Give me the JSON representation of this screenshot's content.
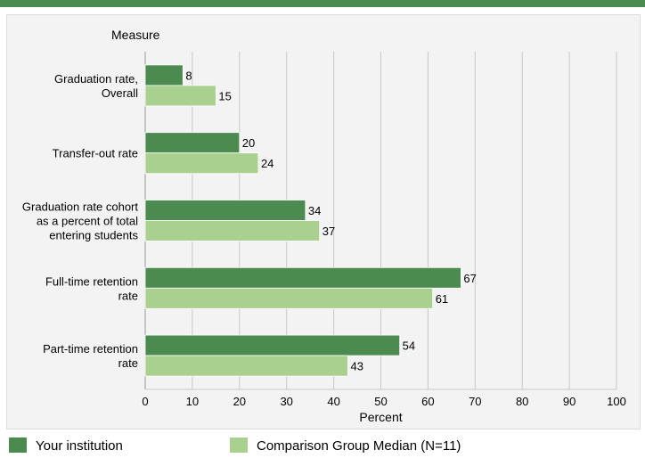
{
  "chart_data": {
    "type": "bar",
    "orientation": "horizontal",
    "yaxis_title": "Measure",
    "xlabel": "Percent",
    "xlim": [
      0,
      100
    ],
    "xticks": [
      0,
      10,
      20,
      30,
      40,
      50,
      60,
      70,
      80,
      90,
      100
    ],
    "grid": true,
    "categories": [
      [
        "Graduation rate,",
        "Overall"
      ],
      [
        "Transfer-out rate"
      ],
      [
        "Graduation rate cohort",
        "as a percent of total",
        "entering students"
      ],
      [
        "Full-time retention",
        "rate"
      ],
      [
        "Part-time retention",
        "rate"
      ]
    ],
    "series": [
      {
        "name": "Your institution",
        "color": "#4b8b4f",
        "values": [
          8,
          20,
          34,
          67,
          54
        ]
      },
      {
        "name": "Comparison Group Median (N=11)",
        "color": "#a9d08e",
        "values": [
          15,
          24,
          37,
          61,
          43
        ]
      }
    ],
    "legend_position": "bottom"
  },
  "legend": {
    "items": [
      {
        "label": "Your institution",
        "color": "#4b8b4f"
      },
      {
        "label": "Comparison Group Median (N=11)",
        "color": "#a9d08e"
      }
    ]
  }
}
